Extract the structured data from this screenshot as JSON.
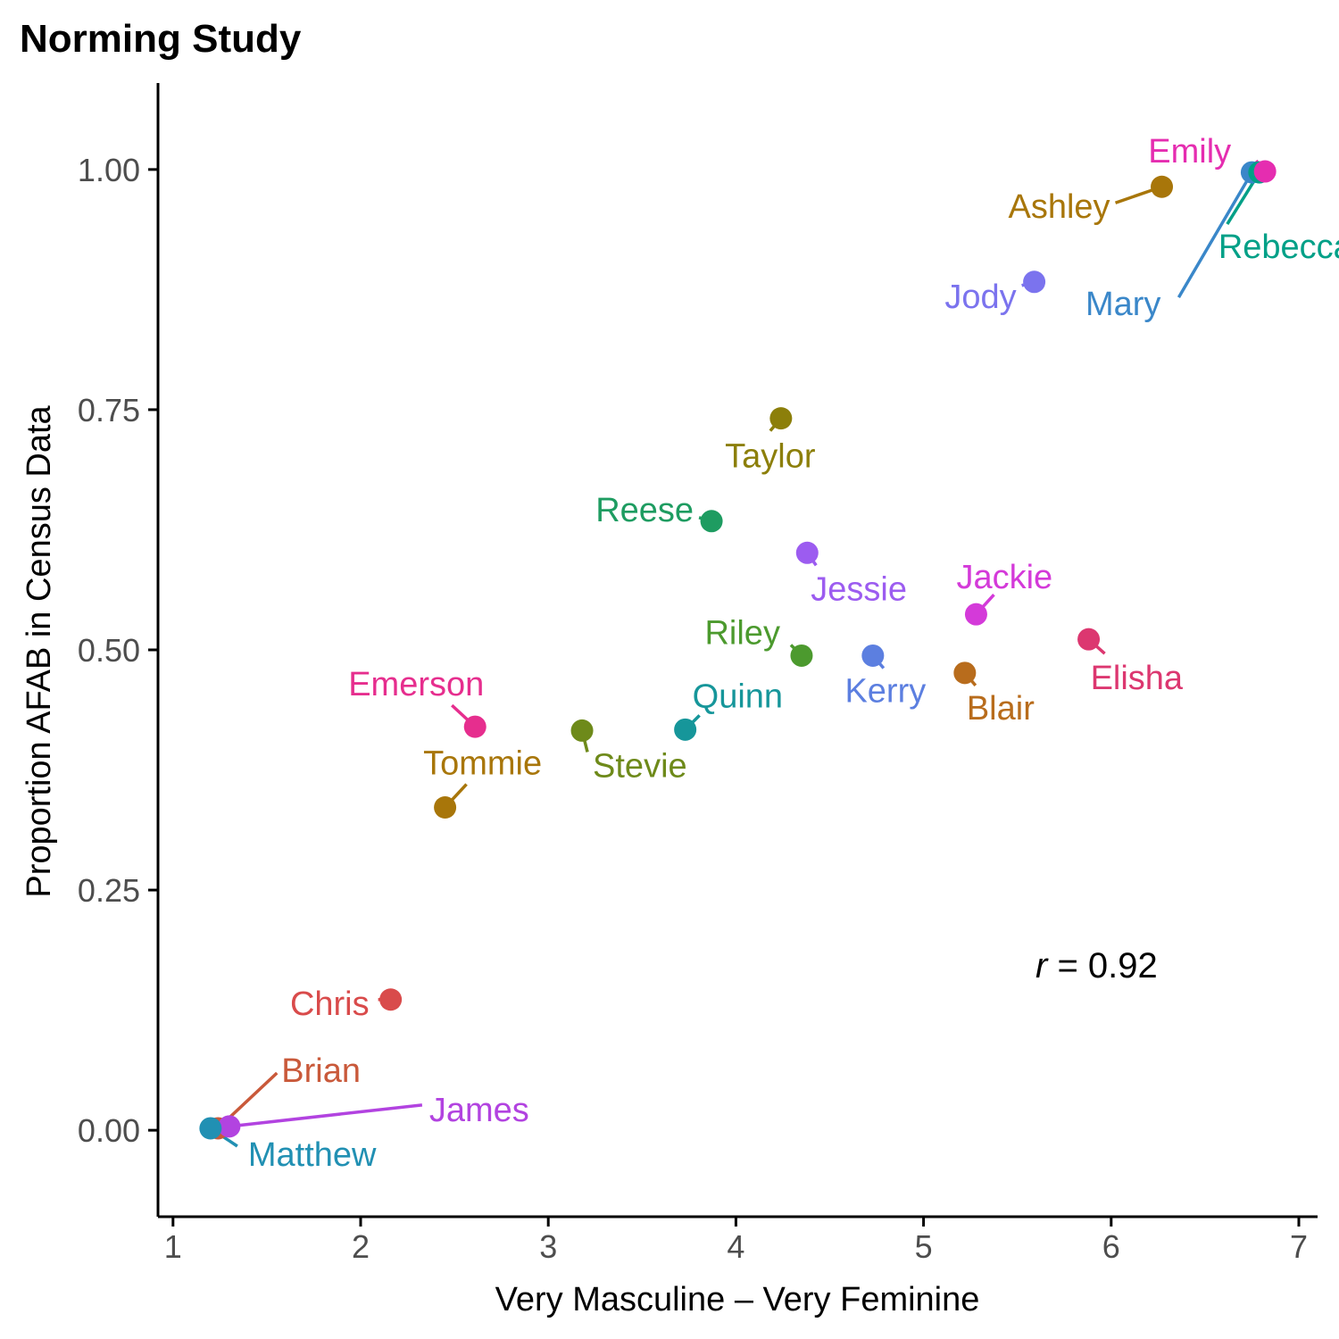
{
  "chart_data": {
    "type": "scatter",
    "title": "Norming Study",
    "xlabel": "Very Masculine – Very Feminine",
    "ylabel": "Proportion AFAB in Census Data",
    "xlim": [
      0.92,
      7.1
    ],
    "ylim": [
      -0.09,
      1.09
    ],
    "x_ticks": [
      1,
      2,
      3,
      4,
      5,
      6,
      7
    ],
    "x_tick_labels": [
      "1",
      "2",
      "3",
      "4",
      "5",
      "6",
      "7"
    ],
    "y_ticks": [
      0,
      0.25,
      0.5,
      0.75,
      1
    ],
    "y_tick_labels": [
      "0.00",
      "0.25",
      "0.50",
      "0.75",
      "1.00"
    ],
    "grid": false,
    "annotation": {
      "symbol": "r",
      "text": " = 0.92"
    },
    "points": [
      {
        "name": "Emily",
        "x": 6.82,
        "y": 0.998,
        "color": "#E52DB0"
      },
      {
        "name": "Rebecca",
        "x": 6.79,
        "y": 0.997,
        "color": "#00A087"
      },
      {
        "name": "Mary",
        "x": 6.75,
        "y": 0.997,
        "color": "#3A87C9"
      },
      {
        "name": "Ashley",
        "x": 6.27,
        "y": 0.982,
        "color": "#A8760A"
      },
      {
        "name": "Jody",
        "x": 5.59,
        "y": 0.883,
        "color": "#7B73EE"
      },
      {
        "name": "Taylor",
        "x": 4.24,
        "y": 0.741,
        "color": "#8C7F0A"
      },
      {
        "name": "Reese",
        "x": 3.87,
        "y": 0.634,
        "color": "#1E9C61"
      },
      {
        "name": "Jessie",
        "x": 4.38,
        "y": 0.601,
        "color": "#9C5CF0"
      },
      {
        "name": "Jackie",
        "x": 5.28,
        "y": 0.537,
        "color": "#D43AD9"
      },
      {
        "name": "Elisha",
        "x": 5.88,
        "y": 0.511,
        "color": "#DC3770"
      },
      {
        "name": "Riley",
        "x": 4.35,
        "y": 0.494,
        "color": "#4C9A2E"
      },
      {
        "name": "Kerry",
        "x": 4.73,
        "y": 0.494,
        "color": "#5C7FE0"
      },
      {
        "name": "Blair",
        "x": 5.22,
        "y": 0.476,
        "color": "#B86C1C"
      },
      {
        "name": "Emerson",
        "x": 2.61,
        "y": 0.42,
        "color": "#E62E8E"
      },
      {
        "name": "Stevie",
        "x": 3.18,
        "y": 0.416,
        "color": "#6E8A1A"
      },
      {
        "name": "Quinn",
        "x": 3.73,
        "y": 0.417,
        "color": "#16969A"
      },
      {
        "name": "Tommie",
        "x": 2.45,
        "y": 0.336,
        "color": "#A8760A"
      },
      {
        "name": "Chris",
        "x": 2.16,
        "y": 0.136,
        "color": "#D94B4B"
      },
      {
        "name": "Brian",
        "x": 1.24,
        "y": 0.002,
        "color": "#C9593A"
      },
      {
        "name": "James",
        "x": 1.3,
        "y": 0.004,
        "color": "#B243E0"
      },
      {
        "name": "Matthew",
        "x": 1.2,
        "y": 0.002,
        "color": "#2190B3"
      }
    ]
  }
}
